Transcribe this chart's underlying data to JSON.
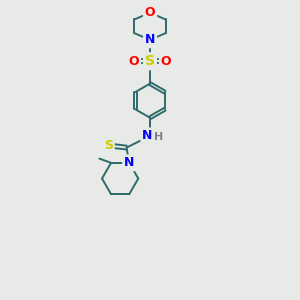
{
  "background_color": "#e8eae8",
  "atom_colors": {
    "C": "#2d6b6b",
    "N": "#0000ff",
    "O": "#ff0000",
    "S": "#cccc00",
    "H": "#808090"
  },
  "bond_color": "#2d6b6b",
  "bond_width": 1.4,
  "font_size": 9
}
